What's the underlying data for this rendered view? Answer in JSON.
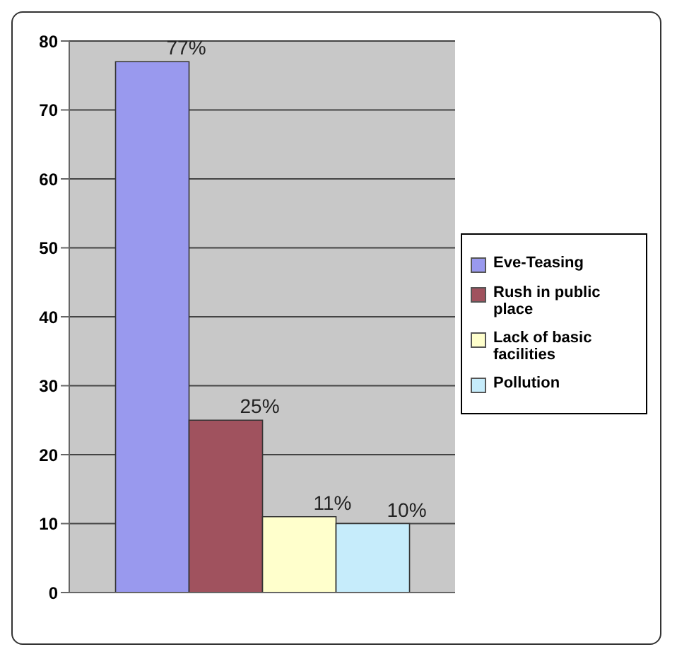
{
  "chart_data": {
    "type": "bar",
    "categories": [
      null
    ],
    "series": [
      {
        "name": "Eve-Teasing",
        "color": "#9999ee",
        "values": [
          77
        ],
        "value_labels": [
          "77%"
        ]
      },
      {
        "name": "Rush in public place",
        "color": "#a0525e",
        "values": [
          25
        ],
        "value_labels": [
          "25%"
        ]
      },
      {
        "name": "Lack of basic facilities",
        "color": "#ffffcc",
        "values": [
          11
        ],
        "value_labels": [
          "11%"
        ]
      },
      {
        "name": "Pollution",
        "color": "#c6ecfb",
        "values": [
          10
        ],
        "value_labels": [
          "10%"
        ]
      }
    ],
    "ylim": [
      0,
      80
    ],
    "yticks": [
      0,
      10,
      20,
      30,
      40,
      50,
      60,
      70,
      80
    ],
    "grid": "y",
    "legend": "right"
  }
}
